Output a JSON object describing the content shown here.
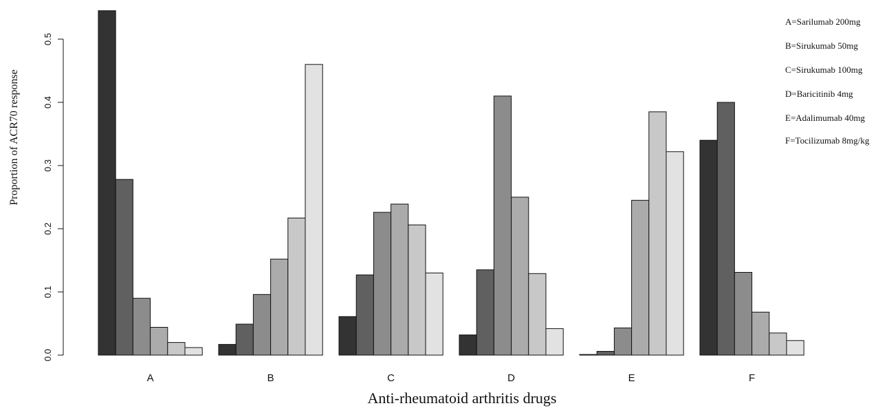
{
  "chart_data": {
    "type": "bar",
    "categories": [
      "A",
      "B",
      "C",
      "D",
      "E",
      "F"
    ],
    "series": [
      {
        "values": [
          0.545,
          0.017,
          0.061,
          0.032,
          0.001,
          0.34
        ]
      },
      {
        "values": [
          0.278,
          0.049,
          0.127,
          0.135,
          0.006,
          0.4
        ]
      },
      {
        "values": [
          0.09,
          0.096,
          0.226,
          0.41,
          0.043,
          0.131
        ]
      },
      {
        "values": [
          0.044,
          0.152,
          0.239,
          0.25,
          0.245,
          0.068
        ]
      },
      {
        "values": [
          0.02,
          0.217,
          0.206,
          0.129,
          0.385,
          0.035
        ]
      },
      {
        "values": [
          0.012,
          0.46,
          0.13,
          0.042,
          0.322,
          0.023
        ]
      }
    ],
    "series_colors": [
      "#333333",
      "#606060",
      "#8c8c8c",
      "#ababab",
      "#c8c8c8",
      "#e2e2e2"
    ],
    "yticks": [
      "0.0",
      "0.1",
      "0.2",
      "0.3",
      "0.4",
      "0.5"
    ],
    "ylim": [
      0,
      0.545
    ],
    "xlabel": "Anti-rheumatoid arthritis drugs",
    "ylabel": "Proportion of ACR70 response",
    "legend": {
      "placement": "top-right",
      "entries": [
        "A=Sarilumab 200mg",
        "B=Sirukumab 50mg",
        "C=Sirukumab 100mg",
        "D=Baricitinib 4mg",
        "E=Adalimumab 40mg",
        "F=Tocilizumab 8mg/kg"
      ]
    },
    "grid": false
  }
}
